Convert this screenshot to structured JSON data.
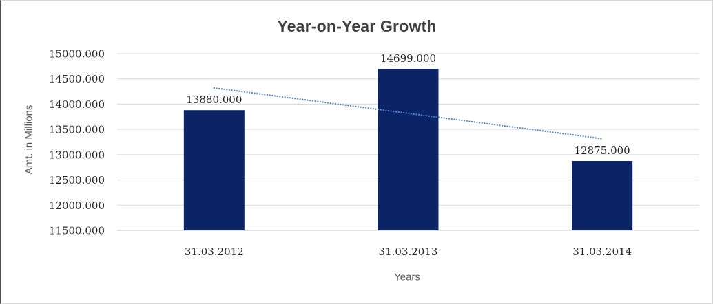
{
  "chart_data": {
    "type": "bar",
    "title": "Year-on-Year Growth",
    "categories": [
      "31.03.2012",
      "31.03.2013",
      "31.03.2014"
    ],
    "values": [
      13880,
      14699,
      12875
    ],
    "data_labels": [
      "13880.000",
      "14699.000",
      "12875.000"
    ],
    "xlabel": "Years",
    "ylabel": "Amt. in Millions",
    "ylim": [
      11500,
      15000
    ],
    "yticks": [
      {
        "value": 15000,
        "label": "15000.000"
      },
      {
        "value": 14500,
        "label": "14500.000"
      },
      {
        "value": 14000,
        "label": "14000.000"
      },
      {
        "value": 13500,
        "label": "13500.000"
      },
      {
        "value": 13000,
        "label": "13000.000"
      },
      {
        "value": 12500,
        "label": "12500.000"
      },
      {
        "value": 12000,
        "label": "12000.000"
      },
      {
        "value": 11500,
        "label": "11500.000"
      }
    ],
    "grid": true,
    "legend": "none",
    "trendline": {
      "type": "linear",
      "style": "dotted",
      "start_value": 14320.5,
      "end_value": 13315.5
    },
    "colors": {
      "bar": "#0b2466",
      "trendline": "#5389cb",
      "gridline": "#d9d9d9",
      "axis_line": "#c6c6c6",
      "tick_text": "#262626",
      "title_text": "#404040",
      "axis_title_text": "#595959"
    }
  }
}
